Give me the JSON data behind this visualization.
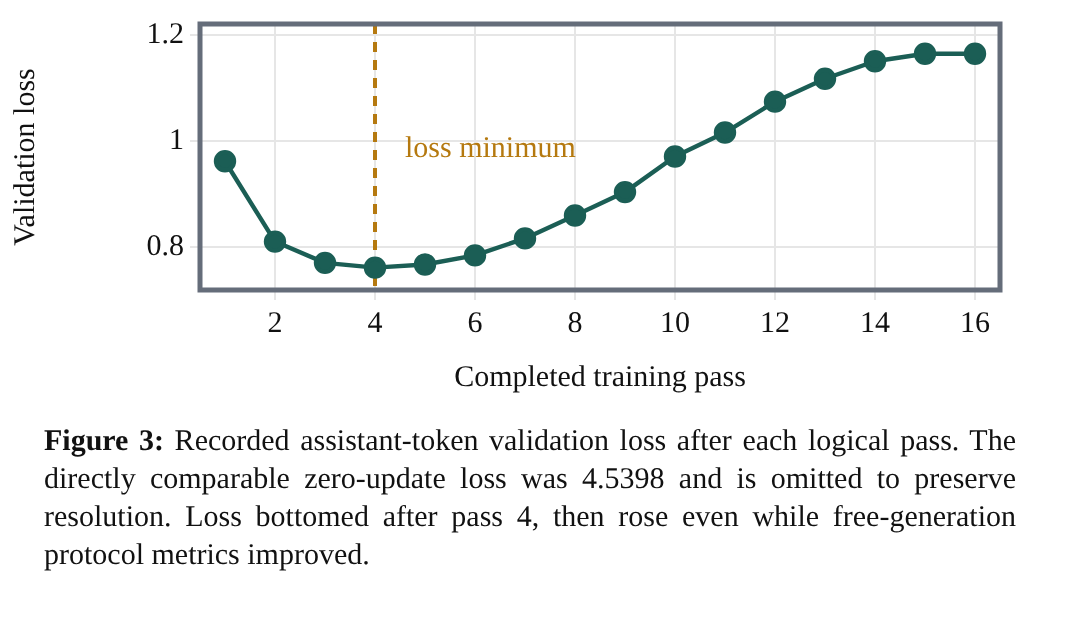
{
  "chart_data": {
    "type": "line",
    "xlabel": "Completed training pass",
    "ylabel": "Validation loss",
    "x": [
      1,
      2,
      3,
      4,
      5,
      6,
      7,
      8,
      9,
      10,
      11,
      12,
      13,
      14,
      15,
      16
    ],
    "series": [
      {
        "color": "#1b5e55",
        "values": [
          0.962,
          0.811,
          0.771,
          0.762,
          0.768,
          0.785,
          0.817,
          0.86,
          0.904,
          0.971,
          1.016,
          1.074,
          1.117,
          1.15,
          1.164,
          1.164
        ]
      }
    ],
    "xlim": [
      0.5,
      16.5
    ],
    "xticks": [
      2,
      4,
      6,
      8,
      10,
      12,
      14,
      16
    ],
    "ylim": [
      0.72,
      1.22
    ],
    "yticks": [
      0.8,
      1,
      1.2
    ],
    "grid": true,
    "legend": false,
    "marker": "circle",
    "line_style": "solid",
    "ref_lines": [
      {
        "axis": "x",
        "value": 4,
        "label": "loss minimum",
        "color": "#b5790f",
        "line_style": "dashed"
      }
    ],
    "annotations": [
      "Figure 3: Recorded assistant-token validation loss after each logical pass.  The directly comparable zero-update loss was 4.5398 and is omitted to preserve resolution. Loss bottomed after pass 4, then rose even while free-generation protocol metrics improved."
    ]
  }
}
